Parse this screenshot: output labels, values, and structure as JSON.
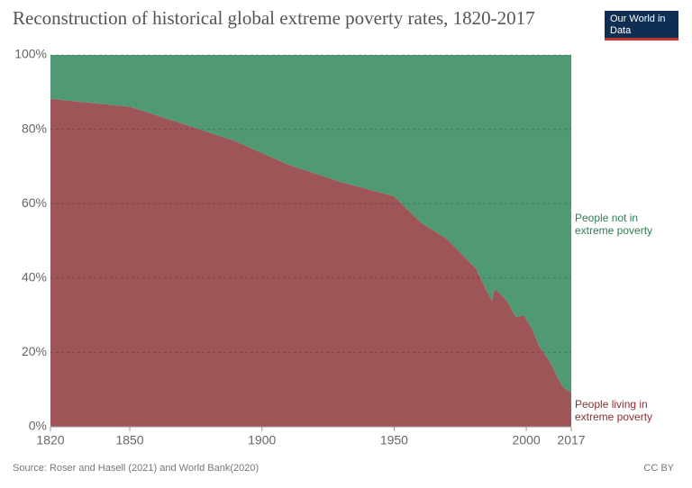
{
  "chart_data": {
    "type": "stacked_area",
    "title": "Reconstruction of historical global extreme poverty rates, 1820-2017",
    "logo": "Our World in Data",
    "source": "Source: Roser and Hasell (2021) and World Bank(2020)",
    "license": "CC BY",
    "x": [
      1820,
      1850,
      1870,
      1890,
      1910,
      1929,
      1950,
      1960,
      1970,
      1981,
      1984,
      1987,
      1988,
      1990,
      1993,
      1996,
      1999,
      2002,
      2005,
      2008,
      2010,
      2012,
      2014,
      2017
    ],
    "series": [
      {
        "name": "People living in extreme poverty",
        "color": "#9e5557",
        "values": [
          88.2,
          86.1,
          81.5,
          76.8,
          70.5,
          66,
          62,
          55,
          50.5,
          42.5,
          38,
          34,
          37,
          36,
          33.5,
          29.5,
          30,
          26.5,
          21.5,
          18.5,
          16,
          13,
          10.5,
          9.2
        ]
      },
      {
        "name": "People not in extreme poverty",
        "color": "#4f9a73",
        "values": [
          11.8,
          13.9,
          18.5,
          23.2,
          29.5,
          34,
          38,
          45,
          49.5,
          57.5,
          62,
          66,
          63,
          64,
          66.5,
          70.5,
          70,
          73.5,
          78.5,
          81.5,
          84,
          87,
          89.5,
          90.8
        ]
      }
    ],
    "xlim": [
      1820,
      2017
    ],
    "xticks": [
      1820,
      1850,
      1900,
      1950,
      2000,
      2017
    ],
    "ylim": [
      0,
      100
    ],
    "yticks": [
      {
        "value": 0,
        "label": "0%"
      },
      {
        "value": 20,
        "label": "20%"
      },
      {
        "value": 40,
        "label": "40%"
      },
      {
        "value": 60,
        "label": "60%"
      },
      {
        "value": 80,
        "label": "80%"
      },
      {
        "value": 100,
        "label": "100%"
      }
    ],
    "grid": true
  }
}
